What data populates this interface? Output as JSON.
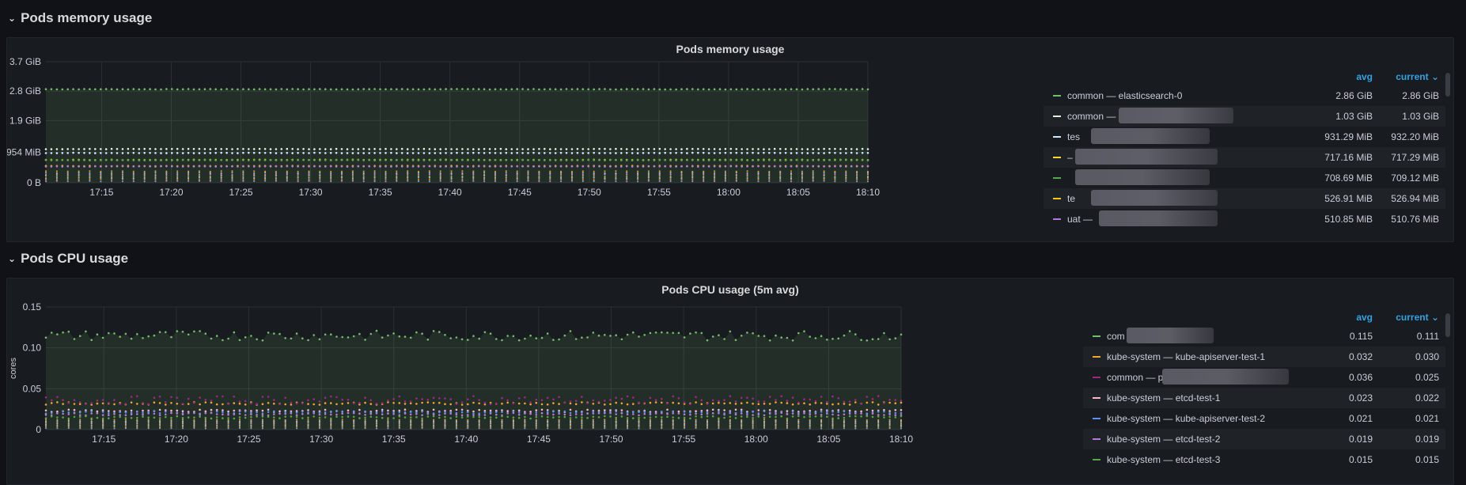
{
  "rows": [
    {
      "title": "Pods memory usage"
    },
    {
      "title": "Pods CPU usage"
    }
  ],
  "memory_panel": {
    "title": "Pods memory usage",
    "legend_header": {
      "avg": "avg",
      "current": "current"
    },
    "legend": [
      {
        "name": "common — elasticsearch-0",
        "avg": "2.86 GiB",
        "current": "2.86 GiB",
        "color": "#73bf69"
      },
      {
        "name": "common —",
        "avg": "1.03 GiB",
        "current": "1.03 GiB",
        "color": "#e0f2dc"
      },
      {
        "name": "tes",
        "avg": "931.29 MiB",
        "current": "932.20 MiB",
        "color": "#d0e8ff"
      },
      {
        "name": "–",
        "avg": "717.16 MiB",
        "current": "717.29 MiB",
        "color": "#fade2a"
      },
      {
        "name": "",
        "avg": "708.69 MiB",
        "current": "709.12 MiB",
        "color": "#56a64b"
      },
      {
        "name": "te",
        "avg": "526.91 MiB",
        "current": "526.94 MiB",
        "color": "#f2cc0c"
      },
      {
        "name": "uat —",
        "avg": "510.85 MiB",
        "current": "510.76 MiB",
        "color": "#b877d9"
      }
    ]
  },
  "cpu_panel": {
    "title": "Pods CPU usage (5m avg)",
    "legend_header": {
      "avg": "avg",
      "current": "current"
    },
    "legend": [
      {
        "name": "com",
        "avg": "0.115",
        "current": "0.111",
        "color": "#73bf69"
      },
      {
        "name": "kube-system — kube-apiserver-test-1",
        "avg": "0.032",
        "current": "0.030",
        "color": "#f2a72c"
      },
      {
        "name": "common — p",
        "avg": "0.036",
        "current": "0.025",
        "color": "#a0287c"
      },
      {
        "name": "kube-system — etcd-test-1",
        "avg": "0.023",
        "current": "0.022",
        "color": "#ffb6c1"
      },
      {
        "name": "kube-system — kube-apiserver-test-2",
        "avg": "0.021",
        "current": "0.021",
        "color": "#5794f2"
      },
      {
        "name": "kube-system — etcd-test-2",
        "avg": "0.019",
        "current": "0.019",
        "color": "#b877d9"
      },
      {
        "name": "kube-system — etcd-test-3",
        "avg": "0.015",
        "current": "0.015",
        "color": "#56a64b"
      }
    ]
  },
  "chart_data": [
    {
      "type": "line",
      "title": "Pods memory usage",
      "xlabel": "",
      "ylabel": "",
      "x_ticks": [
        "17:15",
        "17:20",
        "17:25",
        "17:30",
        "17:35",
        "17:40",
        "17:45",
        "17:50",
        "17:55",
        "18:00",
        "18:05",
        "18:10"
      ],
      "x_range": [
        "17:11",
        "18:10"
      ],
      "y_ticks": [
        "0 B",
        "954 MiB",
        "1.9 GiB",
        "2.8 GiB",
        "3.7 GiB"
      ],
      "ylim_gib": [
        0,
        3.7
      ],
      "grid": true,
      "legend_position": "right",
      "series": [
        {
          "name": "common — elasticsearch-0",
          "value_gib": 2.86,
          "color": "#73bf69"
        },
        {
          "name": "common —",
          "value_gib": 1.03,
          "color": "#e0f2dc"
        },
        {
          "name": "tes",
          "value_gib": 0.91,
          "color": "#d0e8ff"
        },
        {
          "name": "–",
          "value_gib": 0.7,
          "color": "#fade2a"
        },
        {
          "name": "",
          "value_gib": 0.69,
          "color": "#56a64b"
        },
        {
          "name": "te",
          "value_gib": 0.51,
          "color": "#f2cc0c"
        },
        {
          "name": "uat —",
          "value_gib": 0.5,
          "color": "#b877d9"
        }
      ]
    },
    {
      "type": "line",
      "title": "Pods CPU usage (5m avg)",
      "xlabel": "",
      "ylabel": "cores",
      "x_ticks": [
        "17:15",
        "17:20",
        "17:25",
        "17:30",
        "17:35",
        "17:40",
        "17:45",
        "17:50",
        "17:55",
        "18:00",
        "18:05",
        "18:10"
      ],
      "x_range": [
        "17:11",
        "18:10"
      ],
      "y_ticks": [
        "0",
        "0.05",
        "0.10",
        "0.15"
      ],
      "ylim": [
        0,
        0.15
      ],
      "grid": true,
      "legend_position": "right",
      "series": [
        {
          "name": "com",
          "value": 0.115,
          "color": "#73bf69"
        },
        {
          "name": "kube-system — kube-apiserver-test-1",
          "value": 0.032,
          "color": "#f2a72c"
        },
        {
          "name": "common — p",
          "value": 0.036,
          "color": "#a0287c"
        },
        {
          "name": "kube-system — etcd-test-1",
          "value": 0.023,
          "color": "#ffb6c1"
        },
        {
          "name": "kube-system — kube-apiserver-test-2",
          "value": 0.021,
          "color": "#5794f2"
        },
        {
          "name": "kube-system — etcd-test-2",
          "value": 0.019,
          "color": "#b877d9"
        },
        {
          "name": "kube-system — etcd-test-3",
          "value": 0.015,
          "color": "#56a64b"
        }
      ]
    }
  ]
}
